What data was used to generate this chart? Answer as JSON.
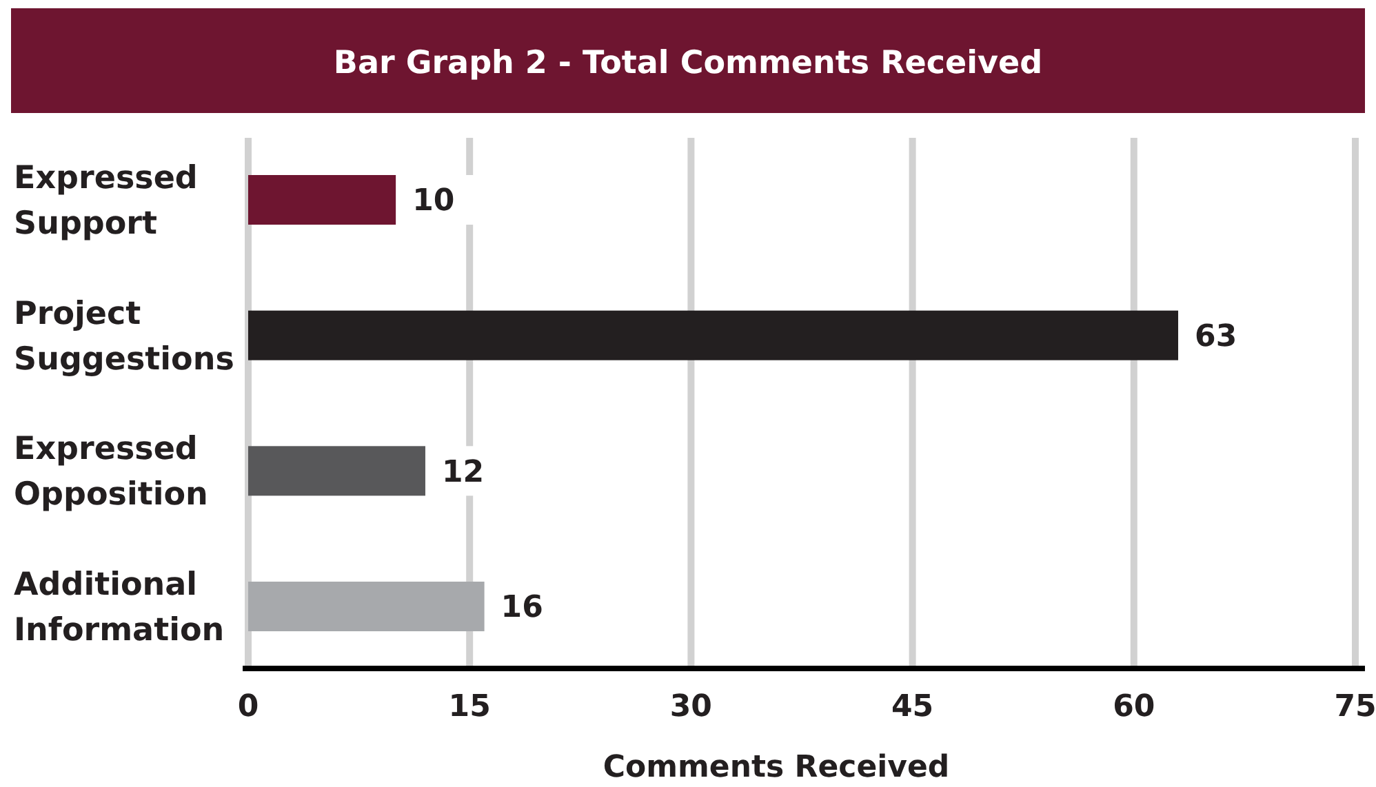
{
  "chart_data": {
    "type": "bar",
    "orientation": "horizontal",
    "title": "Bar Graph 2 - Total Comments Received",
    "xlabel": "Comments Received",
    "categories": [
      "Expressed Support",
      "Project Suggestions",
      "Expressed Opposition",
      "Additional Information"
    ],
    "values": [
      10,
      63,
      12,
      16
    ],
    "colors": [
      "#6e1530",
      "#231f20",
      "#58585a",
      "#a7a9ac"
    ],
    "xlim": [
      0,
      75
    ],
    "xticks": [
      0,
      15,
      30,
      45,
      60,
      75
    ],
    "grid": "x",
    "data_labels": true
  }
}
